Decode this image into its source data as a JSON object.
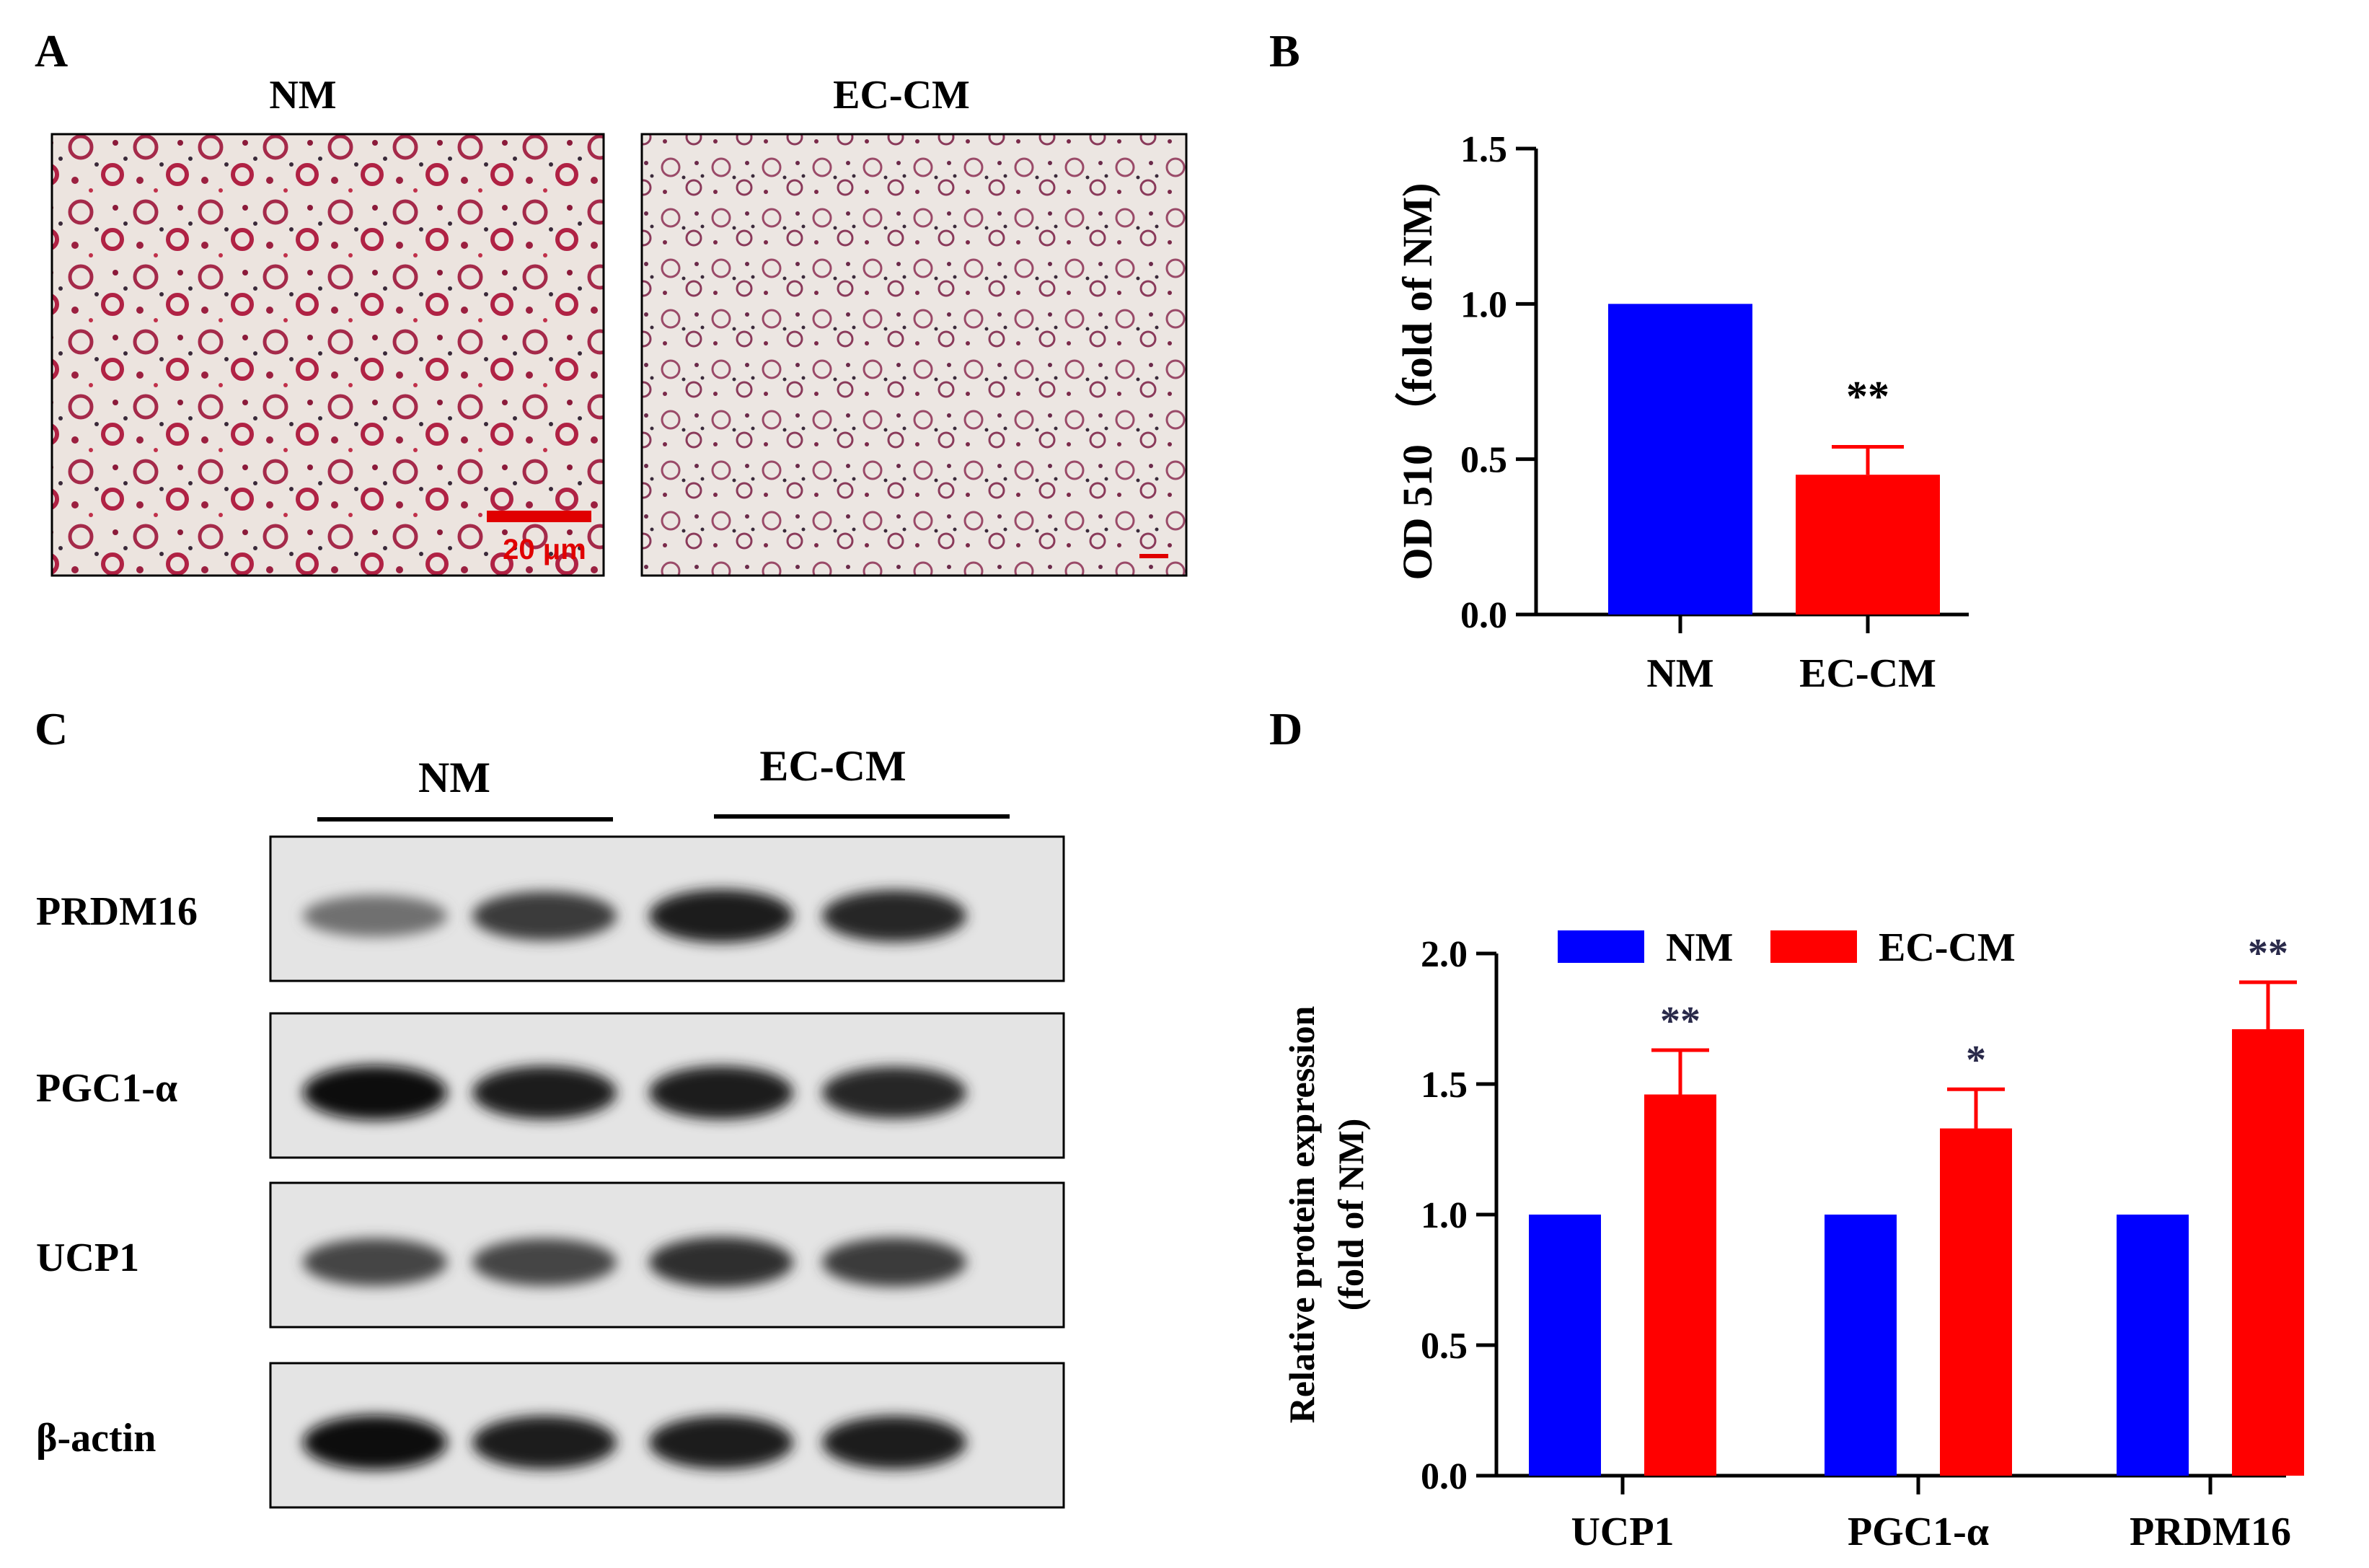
{
  "panel_a": {
    "letter": "A",
    "images": [
      {
        "label": "NM",
        "scale_bar": "20 μm"
      },
      {
        "label": "EC-CM"
      }
    ]
  },
  "panel_b": {
    "letter": "B"
  },
  "panel_c": {
    "letter": "C",
    "group_labels": [
      "NM",
      "EC-CM"
    ],
    "rows": [
      {
        "label": "PRDM16",
        "intensity": [
          0.55,
          0.8,
          0.95,
          0.9
        ]
      },
      {
        "label": "PGC1-α",
        "intensity": [
          1.0,
          0.95,
          0.95,
          0.9
        ]
      },
      {
        "label": "UCP1",
        "intensity": [
          0.75,
          0.75,
          0.85,
          0.8
        ]
      },
      {
        "label": "β-actin",
        "intensity": [
          1.0,
          0.95,
          0.95,
          0.95
        ]
      }
    ]
  },
  "panel_d": {
    "letter": "D"
  },
  "chart_data": [
    {
      "id": "B",
      "type": "bar",
      "categories": [
        "NM",
        "EC-CM"
      ],
      "values": [
        1.0,
        0.45
      ],
      "errors": [
        0,
        0.09
      ],
      "bar_colors": [
        "#0000ff",
        "#ff0000"
      ],
      "significance": [
        "",
        "**"
      ],
      "ylabel": "OD 510 （fold of NM)",
      "ylim": [
        0,
        1.5
      ],
      "yticks": [
        "0.0",
        "0.5",
        "1.0",
        "1.5"
      ],
      "grid": false
    },
    {
      "id": "D",
      "type": "bar",
      "categories": [
        "UCP1",
        "PGC1-α",
        "PRDM16"
      ],
      "series": [
        {
          "name": "NM",
          "color": "#0000ff",
          "values": [
            1.0,
            1.0,
            1.0
          ],
          "errors": [
            0,
            0,
            0
          ],
          "significance": [
            "",
            "",
            ""
          ]
        },
        {
          "name": "EC-CM",
          "color": "#ff0000",
          "values": [
            1.46,
            1.33,
            1.71
          ],
          "errors": [
            0.17,
            0.15,
            0.18
          ],
          "significance": [
            "**",
            "*",
            "**"
          ]
        }
      ],
      "ylabel_lines": [
        "Relative protein expression",
        "(fold of NM)"
      ],
      "ylim": [
        0,
        2.0
      ],
      "yticks": [
        "0.0",
        "0.5",
        "1.0",
        "1.5",
        "2.0"
      ],
      "legend_position": "top",
      "grid": false
    }
  ]
}
